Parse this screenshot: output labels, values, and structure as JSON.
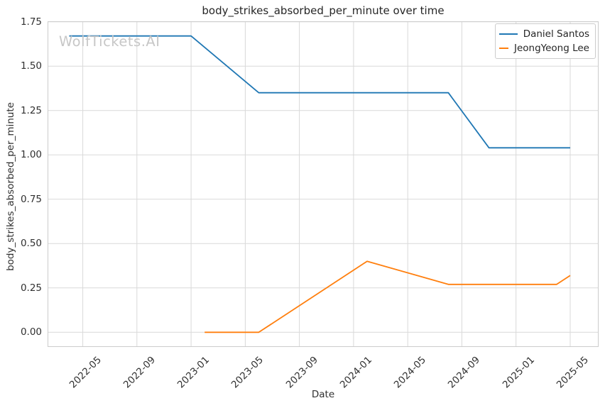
{
  "watermark": {
    "text": "WolfTickets.AI",
    "color": "#c7c7c7"
  },
  "chart_data": {
    "type": "line",
    "title": "body_strikes_absorbed_per_minute over time",
    "xlabel": "Date",
    "ylabel": "body_strikes_absorbed_per_minute",
    "legend_position": "upper right",
    "grid": true,
    "grid_color": "#d9d9d9",
    "spine_color": "#cccccc",
    "text_color": "#303030",
    "x_ticks": [
      "2022-05",
      "2022-09",
      "2023-01",
      "2023-05",
      "2023-09",
      "2024-01",
      "2024-05",
      "2024-09",
      "2025-01",
      "2025-05"
    ],
    "y_ticks": [
      "0.00",
      "0.25",
      "0.50",
      "0.75",
      "1.00",
      "1.25",
      "1.50",
      "1.75"
    ],
    "month_index_epoch": "2022-01",
    "xlim_month_index": [
      1.4,
      42.1
    ],
    "ylim": [
      -0.083,
      1.753
    ],
    "series": [
      {
        "name": "Daniel Santos",
        "color": "#1f77b4",
        "points": [
          {
            "date": "2022-04",
            "value": 1.67
          },
          {
            "date": "2023-01",
            "value": 1.67
          },
          {
            "date": "2023-06",
            "value": 1.35
          },
          {
            "date": "2024-08",
            "value": 1.35
          },
          {
            "date": "2024-11",
            "value": 1.04
          },
          {
            "date": "2025-05",
            "value": 1.04
          }
        ]
      },
      {
        "name": "JeongYeong Lee",
        "color": "#ff7f0e",
        "points": [
          {
            "date": "2023-02",
            "value": 0.0
          },
          {
            "date": "2023-06",
            "value": 0.0
          },
          {
            "date": "2024-02",
            "value": 0.4
          },
          {
            "date": "2024-08",
            "value": 0.27
          },
          {
            "date": "2025-04",
            "value": 0.27
          },
          {
            "date": "2025-05",
            "value": 0.32
          }
        ]
      }
    ]
  }
}
